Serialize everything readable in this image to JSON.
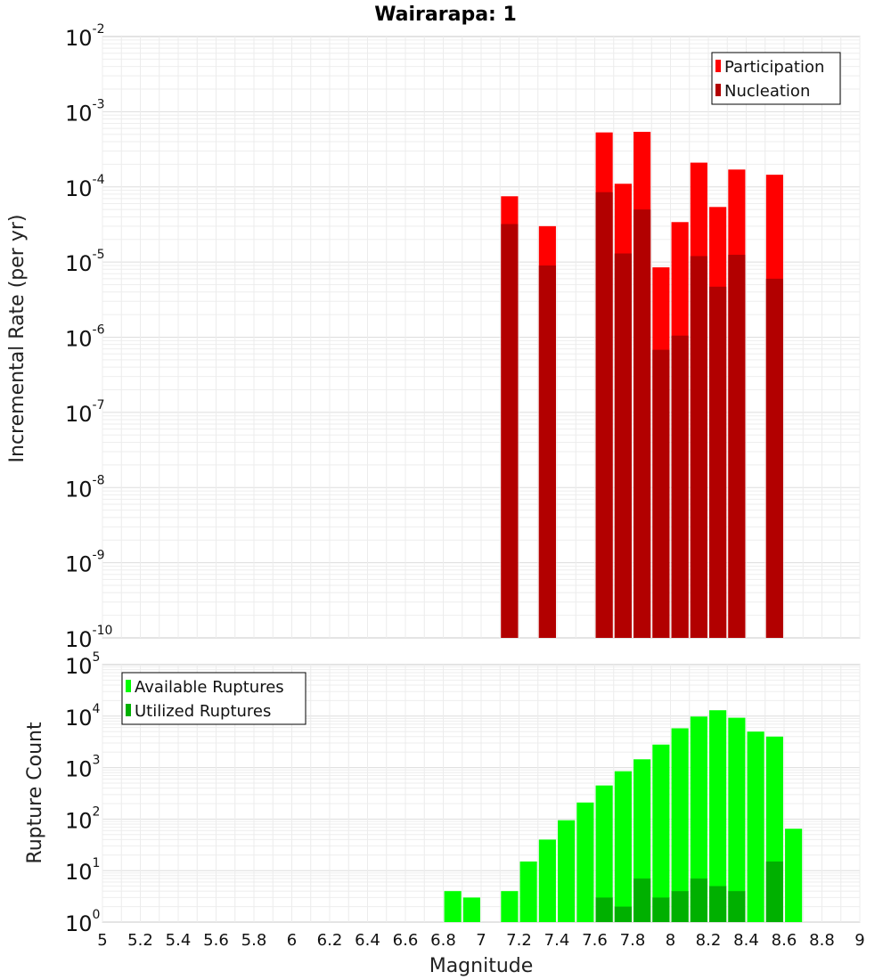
{
  "chart_data": [
    {
      "type": "bar",
      "title": "Wairarapa: 1",
      "xlabel": "",
      "ylabel": "Incremental Rate (per yr)",
      "y_scale": "log",
      "ylim_exp": [
        -10,
        -2
      ],
      "xlim": [
        5,
        9
      ],
      "grid": true,
      "legend_position": "top-right",
      "bar_width": 0.09,
      "series": [
        {
          "name": "Participation",
          "color": "#ff0000",
          "x": [
            7.15,
            7.35,
            7.65,
            7.75,
            7.85,
            7.95,
            8.05,
            8.15,
            8.25,
            8.35,
            8.55
          ],
          "values": [
            7.5e-05,
            3e-05,
            0.00053,
            0.00011,
            0.00054,
            8.5e-06,
            3.4e-05,
            0.00021,
            5.4e-05,
            0.00017,
            0.000145
          ]
        },
        {
          "name": "Nucleation",
          "color": "#b20000",
          "x": [
            7.15,
            7.35,
            7.65,
            7.75,
            7.85,
            7.95,
            8.05,
            8.15,
            8.25,
            8.35,
            8.55
          ],
          "values": [
            3.2e-05,
            9e-06,
            8.5e-05,
            1.3e-05,
            5e-05,
            6.8e-07,
            1.05e-06,
            1.2e-05,
            4.7e-06,
            1.25e-05,
            6e-06
          ]
        }
      ]
    },
    {
      "type": "bar",
      "title": "",
      "xlabel": "Magnitude",
      "ylabel": "Rupture Count",
      "y_scale": "log",
      "ylim_exp": [
        0,
        5
      ],
      "xlim": [
        5,
        9
      ],
      "grid": true,
      "legend_position": "top-left",
      "bar_width": 0.09,
      "x_ticks": [
        "5",
        "5.2",
        "5.4",
        "5.6",
        "5.8",
        "6",
        "6.2",
        "6.4",
        "6.6",
        "6.8",
        "7",
        "7.2",
        "7.4",
        "7.6",
        "7.8",
        "8",
        "8.2",
        "8.4",
        "8.6",
        "8.8",
        "9"
      ],
      "series": [
        {
          "name": "Available Ruptures",
          "color": "#00ff00",
          "x": [
            6.85,
            6.95,
            7.15,
            7.25,
            7.35,
            7.45,
            7.55,
            7.65,
            7.75,
            7.85,
            7.95,
            8.05,
            8.15,
            8.25,
            8.35,
            8.45,
            8.55,
            8.65
          ],
          "values": [
            4,
            3,
            4,
            15,
            40,
            95,
            210,
            450,
            850,
            1450,
            2800,
            5800,
            9800,
            13000,
            9300,
            5000,
            4000,
            65
          ]
        },
        {
          "name": "Utilized Ruptures",
          "color": "#00b000",
          "x": [
            7.15,
            7.35,
            7.65,
            7.75,
            7.85,
            7.95,
            8.05,
            8.15,
            8.25,
            8.35,
            8.55
          ],
          "values": [
            1,
            1,
            3,
            2,
            7,
            3,
            4,
            7,
            5,
            4,
            15
          ]
        }
      ]
    }
  ]
}
